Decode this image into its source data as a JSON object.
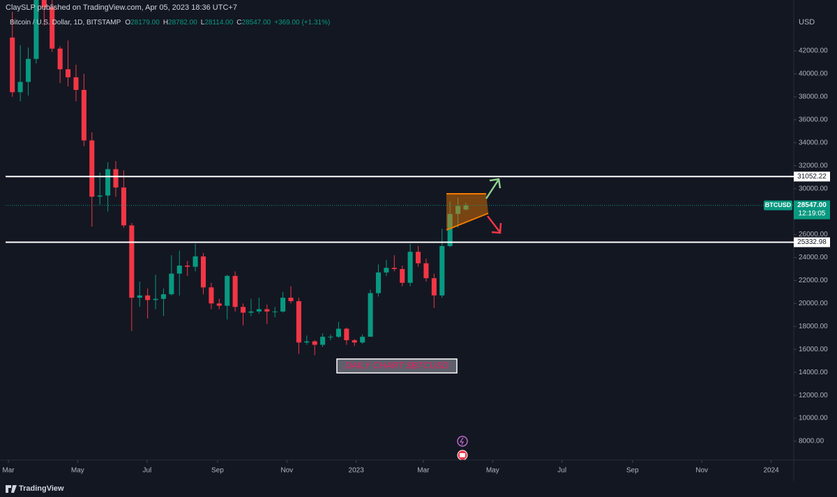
{
  "chart_data": {
    "type": "candlestick",
    "header": "ClaySLP published on TradingView.com, Apr 05, 2023 18:36 UTC+7",
    "title": "Bitcoin / U.S. Dollar, 1D, BITSTAMP",
    "legend_values": [
      {
        "label": "O",
        "value": "28179.00"
      },
      {
        "label": "H",
        "value": "28782.00"
      },
      {
        "label": "L",
        "value": "28114.00"
      },
      {
        "label": "C",
        "value": "28547.00"
      }
    ],
    "change": "+369.00 (+1.31%)",
    "y_axis_unit": "USD",
    "annotation": "DAILY CHART $BTCUSD",
    "brand": "TradingView",
    "up_color": "#089981",
    "down_color": "#f23645",
    "grid": false,
    "x": [
      0,
      1,
      2,
      3,
      4,
      5,
      6,
      7,
      8,
      9,
      10,
      11,
      12,
      13,
      14,
      15,
      16,
      17,
      18,
      19,
      20,
      21,
      22,
      23,
      24,
      25,
      26,
      27,
      28,
      29,
      30,
      31,
      32,
      33,
      34,
      35,
      36,
      37,
      38,
      39,
      40,
      41,
      42,
      43,
      44,
      45,
      46,
      47,
      48,
      49,
      50,
      51,
      52,
      53,
      54,
      55,
      56,
      57
    ],
    "open": [
      43160,
      38400,
      39300,
      41300,
      46800,
      45800,
      42200,
      40400,
      39700,
      38600,
      34200,
      29300,
      29400,
      31700,
      30100,
      26800,
      20500,
      20700,
      20300,
      20400,
      20800,
      22600,
      23300,
      23200,
      24100,
      21400,
      20000,
      19800,
      22400,
      19700,
      19200,
      19300,
      19500,
      19300,
      19300,
      20500,
      20200,
      16600,
      16700,
      16400,
      17100,
      17100,
      17800,
      16800,
      16600,
      17100,
      20900,
      22700,
      23100,
      23000,
      21800,
      24500,
      23500,
      22200,
      20700,
      25000,
      27800,
      28179
    ],
    "high": [
      45400,
      42500,
      42300,
      47400,
      48200,
      47200,
      42400,
      42900,
      40800,
      40000,
      34900,
      31400,
      32300,
      32400,
      31600,
      27000,
      21900,
      21300,
      22500,
      21300,
      24200,
      24600,
      23700,
      25200,
      24400,
      21800,
      20400,
      22500,
      22800,
      20000,
      20400,
      20500,
      19900,
      19700,
      21000,
      21500,
      20500,
      17200,
      16800,
      17400,
      17300,
      18400,
      17900,
      16900,
      17300,
      21200,
      23400,
      23800,
      24200,
      23300,
      25200,
      25000,
      23900,
      22600,
      26500,
      28900,
      29200,
      28782
    ],
    "low": [
      38000,
      37600,
      38100,
      40900,
      44200,
      41900,
      39200,
      38900,
      37600,
      33700,
      26700,
      28600,
      28000,
      29300,
      26600,
      17600,
      19700,
      18700,
      19500,
      18900,
      20700,
      20700,
      22400,
      22800,
      20800,
      19500,
      19500,
      18600,
      19300,
      18100,
      18900,
      19100,
      18200,
      18800,
      19200,
      20000,
      15600,
      16400,
      15500,
      16200,
      16800,
      17000,
      16400,
      16300,
      16500,
      17200,
      20600,
      22400,
      22800,
      21500,
      21500,
      23200,
      21900,
      19600,
      20500,
      24900,
      26600,
      28114
    ],
    "close": [
      38400,
      39300,
      41300,
      46800,
      45800,
      42200,
      40400,
      39700,
      38600,
      34200,
      29300,
      29400,
      31700,
      30100,
      26800,
      20500,
      20700,
      20300,
      20400,
      20800,
      22600,
      23300,
      23200,
      24100,
      21400,
      20000,
      19800,
      22400,
      19700,
      19200,
      19300,
      19500,
      19300,
      19300,
      20500,
      20200,
      16600,
      16700,
      16400,
      17100,
      17100,
      17800,
      16800,
      16600,
      17100,
      20900,
      22700,
      23100,
      23000,
      21800,
      24500,
      23500,
      22200,
      20700,
      25000,
      27800,
      28500,
      28547
    ],
    "xlim": [
      -0.35,
      98.7
    ],
    "xticks": [
      {
        "value": 0,
        "label": "Mar"
      },
      {
        "value": 8.71,
        "label": "May"
      },
      {
        "value": 17.43,
        "label": "Jul"
      },
      {
        "value": 26.29,
        "label": "Sep"
      },
      {
        "value": 35.0,
        "label": "Nov"
      },
      {
        "value": 43.71,
        "label": "2023"
      },
      {
        "value": 52.14,
        "label": "Mar"
      },
      {
        "value": 60.86,
        "label": "May"
      },
      {
        "value": 69.57,
        "label": "Jul"
      },
      {
        "value": 78.43,
        "label": "Sep"
      },
      {
        "value": 87.14,
        "label": "Nov"
      },
      {
        "value": 95.86,
        "label": "2024"
      }
    ],
    "ylim": [
      6664,
      44914
    ],
    "yticks": [
      {
        "value": 8000,
        "label": "8000.00"
      },
      {
        "value": 10000,
        "label": "10000.00"
      },
      {
        "value": 12000,
        "label": "12000.00"
      },
      {
        "value": 14000,
        "label": "14000.00"
      },
      {
        "value": 16000,
        "label": "16000.00"
      },
      {
        "value": 18000,
        "label": "18000.00"
      },
      {
        "value": 20000,
        "label": "20000.00"
      },
      {
        "value": 22000,
        "label": "22000.00"
      },
      {
        "value": 24000,
        "label": "24000.00"
      },
      {
        "value": 26000,
        "label": "26000.00"
      },
      {
        "value": 28000,
        "label": "28000.00"
      },
      {
        "value": 30000,
        "label": "30000.00"
      },
      {
        "value": 32000,
        "label": "32000.00"
      },
      {
        "value": 34000,
        "label": "34000.00"
      },
      {
        "value": 36000,
        "label": "36000.00"
      },
      {
        "value": 38000,
        "label": "38000.00"
      },
      {
        "value": 40000,
        "label": "40000.00"
      },
      {
        "value": 42000,
        "label": "42000.00"
      }
    ],
    "levels": [
      {
        "value": 31052.22,
        "label": "31052.22"
      },
      {
        "value": 25332.98,
        "label": "25332.98"
      }
    ],
    "last_price": {
      "symbol": "BTCUSD",
      "value": 28547,
      "label": "28547.00",
      "countdown": "12:19:05"
    }
  }
}
